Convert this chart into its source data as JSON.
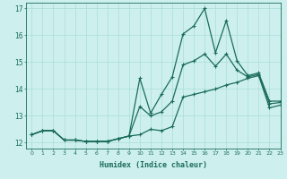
{
  "xlabel": "Humidex (Indice chaleur)",
  "xlim": [
    -0.5,
    23
  ],
  "ylim": [
    11.8,
    17.2
  ],
  "yticks": [
    12,
    13,
    14,
    15,
    16,
    17
  ],
  "xticks": [
    0,
    1,
    2,
    3,
    4,
    5,
    6,
    7,
    8,
    9,
    10,
    11,
    12,
    13,
    14,
    15,
    16,
    17,
    18,
    19,
    20,
    21,
    22,
    23
  ],
  "background_color": "#cdf0ee",
  "grid_color": "#aaddd8",
  "line_color": "#1a6b5a",
  "x": [
    0,
    1,
    2,
    3,
    4,
    5,
    6,
    7,
    8,
    9,
    10,
    11,
    12,
    13,
    14,
    15,
    16,
    17,
    18,
    19,
    20,
    21,
    22,
    23
  ],
  "y_top": [
    12.3,
    12.45,
    12.45,
    12.1,
    12.1,
    12.05,
    12.05,
    12.05,
    12.15,
    12.25,
    14.4,
    13.1,
    13.8,
    14.45,
    16.05,
    16.35,
    17.0,
    15.35,
    16.55,
    15.05,
    14.5,
    14.6,
    13.55,
    13.55
  ],
  "y_mid": [
    12.3,
    12.45,
    12.45,
    12.1,
    12.1,
    12.05,
    12.05,
    12.05,
    12.15,
    12.25,
    13.35,
    13.0,
    13.15,
    13.55,
    14.9,
    15.05,
    15.3,
    14.85,
    15.3,
    14.7,
    14.45,
    14.55,
    13.45,
    13.5
  ],
  "y_bot": [
    12.3,
    12.45,
    12.45,
    12.1,
    12.1,
    12.05,
    12.05,
    12.05,
    12.15,
    12.25,
    12.3,
    12.5,
    12.45,
    12.6,
    13.7,
    13.8,
    13.9,
    14.0,
    14.15,
    14.25,
    14.4,
    14.5,
    13.3,
    13.4
  ]
}
